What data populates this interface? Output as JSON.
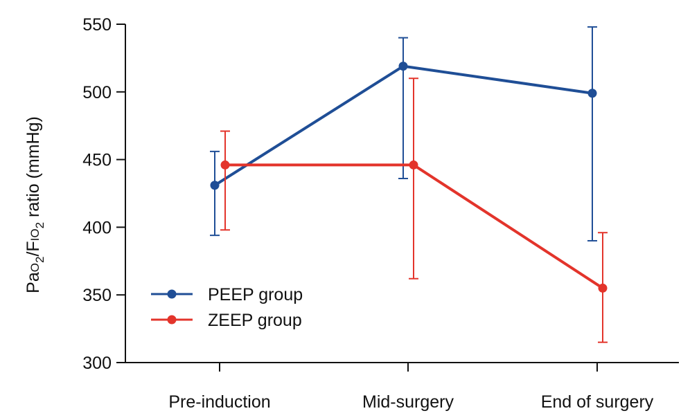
{
  "chart_data": {
    "type": "line",
    "title": "",
    "xlabel": "",
    "ylabel": {
      "parts": [
        "Pa",
        "O",
        "2",
        "/F",
        "IO",
        "2",
        " ratio (mmHg)"
      ]
    },
    "categories": [
      "Pre-induction",
      "Mid-surgery",
      "End of surgery"
    ],
    "ylim": [
      300,
      550
    ],
    "yticks": [
      300,
      350,
      400,
      450,
      500,
      550
    ],
    "ytick_labels": [
      "300",
      "350",
      "400",
      "450",
      "500",
      "550"
    ],
    "grid": false,
    "legend": "bottom-left",
    "series": [
      {
        "name": "PEEP group",
        "color": "#1f4e96",
        "values": [
          431,
          519,
          499
        ],
        "error_low": [
          394,
          436,
          390
        ],
        "error_high": [
          456,
          540,
          548
        ]
      },
      {
        "name": "ZEEP group",
        "color": "#e3342b",
        "values": [
          446,
          446,
          355
        ],
        "error_low": [
          398,
          362,
          315
        ],
        "error_high": [
          471,
          510,
          396
        ]
      }
    ]
  }
}
